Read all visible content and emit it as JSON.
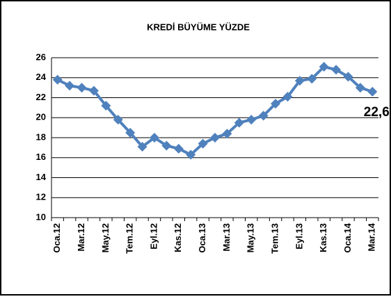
{
  "chart_data": {
    "type": "line",
    "title": "KREDİ BÜYÜME YÜZDE",
    "categories": [
      "Oca.12",
      null,
      "Mar.12",
      null,
      "May.12",
      null,
      "Tem.12",
      null,
      "Eyl.12",
      null,
      "Kas.12",
      null,
      "Oca.13",
      null,
      "Mar.13",
      null,
      "May.13",
      null,
      "Tem.13",
      null,
      "Eyl.13",
      null,
      "Kas.13",
      null,
      "Oca.14",
      null,
      "Mar.14"
    ],
    "series": [
      {
        "name": "KREDİ BÜYÜME YÜZDE",
        "color": "#4f81bd",
        "values": [
          23.8,
          23.2,
          23.0,
          22.7,
          21.2,
          19.8,
          18.5,
          17.1,
          18.0,
          17.2,
          16.9,
          16.3,
          17.4,
          18.0,
          18.4,
          19.5,
          19.8,
          20.2,
          21.4,
          22.1,
          23.7,
          23.9,
          25.1,
          24.8,
          24.1,
          23.0,
          22.6
        ],
        "value_labels": [
          null,
          null,
          null,
          null,
          null,
          null,
          null,
          null,
          null,
          null,
          null,
          null,
          null,
          null,
          null,
          null,
          null,
          null,
          null,
          null,
          null,
          null,
          null,
          null,
          null,
          null,
          "22,6"
        ]
      }
    ],
    "ylim": [
      10,
      26
    ],
    "yticks": [
      10,
      12,
      14,
      16,
      18,
      20,
      22,
      24,
      26
    ],
    "grid": true
  }
}
